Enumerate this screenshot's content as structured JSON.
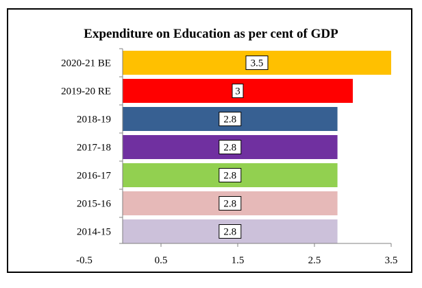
{
  "chart_data": {
    "type": "bar",
    "orientation": "horizontal",
    "title": "Expenditure on Education as per cent of GDP",
    "xlabel": "",
    "ylabel": "",
    "xlim": [
      -0.5,
      3.5
    ],
    "xticks": [
      -0.5,
      0.5,
      1.5,
      2.5,
      3.5
    ],
    "xtick_labels": [
      "-0.5",
      "0.5",
      "1.5",
      "2.5",
      "3.5"
    ],
    "grid": false,
    "categories": [
      "2020-21 BE",
      "2019-20 RE",
      "2018-19",
      "2017-18",
      "2016-17",
      "2015-16",
      "2014-15"
    ],
    "values": [
      3.5,
      3,
      2.8,
      2.8,
      2.8,
      2.8,
      2.8
    ],
    "data_labels": [
      "3.5",
      "3",
      "2.8",
      "2.8",
      "2.8",
      "2.8",
      "2.8"
    ],
    "colors": [
      "#FFC000",
      "#FF0000",
      "#376092",
      "#7030A0",
      "#92D050",
      "#E6B9B8",
      "#CCC1DA"
    ]
  }
}
